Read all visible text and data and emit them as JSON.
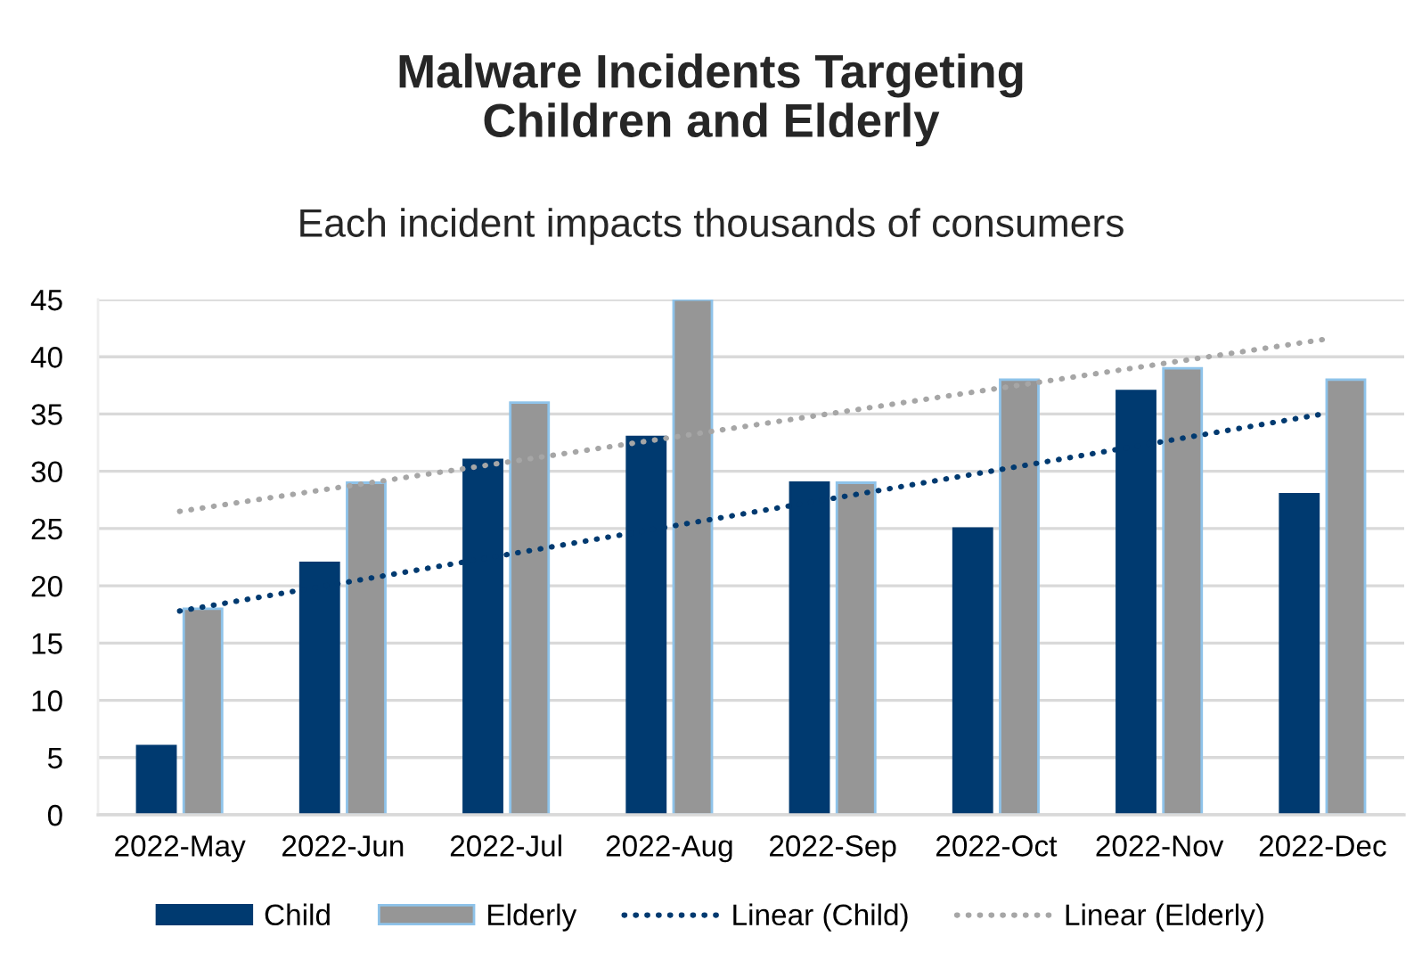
{
  "chart_data": {
    "type": "bar",
    "title": "Malware Incidents Targeting\nChildren and Elderly",
    "subtitle": "Each incident impacts thousands of consumers",
    "categories": [
      "2022-May",
      "2022-Jun",
      "2022-Jul",
      "2022-Aug",
      "2022-Sep",
      "2022-Oct",
      "2022-Nov",
      "2022-Dec"
    ],
    "series": [
      {
        "name": "Child",
        "color": "#003a70",
        "values": [
          6,
          22,
          31,
          33,
          29,
          25,
          37,
          28
        ]
      },
      {
        "name": "Elderly",
        "color": "#969696",
        "values": [
          18,
          29,
          36,
          45,
          29,
          38,
          39,
          38
        ]
      },
      {
        "name": "Linear (Child)",
        "type": "line",
        "color": "#003a70",
        "line_style": "dotted",
        "x": [
          "2022-May",
          "2022-Dec"
        ],
        "values": [
          17.8,
          35
        ]
      },
      {
        "name": "Linear (Elderly)",
        "type": "line",
        "color": "#a6a6a6",
        "line_style": "dotted",
        "x": [
          "2022-May",
          "2022-Dec"
        ],
        "values": [
          26.5,
          41.5
        ]
      }
    ],
    "ylim": [
      0,
      45
    ],
    "yticks": [
      0,
      5,
      10,
      15,
      20,
      25,
      30,
      35,
      40,
      45
    ],
    "grid": "y",
    "legend": "bottom"
  }
}
